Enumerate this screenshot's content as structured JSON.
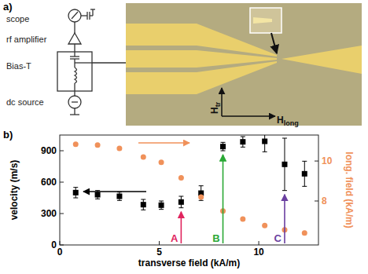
{
  "panel_a": {
    "label": "a)",
    "components": [
      "scope",
      "rf amplifier",
      "Bias-T",
      "dc source"
    ],
    "field_labels": [
      {
        "symbol": "H",
        "subscript": "tr"
      },
      {
        "symbol": "H",
        "subscript": "long"
      }
    ]
  },
  "panel_b": {
    "label": "b)"
  },
  "chart_data": {
    "type": "scatter",
    "xlabel": "transverse field (kA/m)",
    "ylabel": "velocity (m/s)",
    "y2label": "long. field (kA/m)",
    "xlim": [
      0,
      13
    ],
    "ylim": [
      0,
      1050
    ],
    "y2lim": [
      5.8,
      11.3
    ],
    "xticks": [
      0,
      5,
      10
    ],
    "yticks": [
      0,
      300,
      600,
      900
    ],
    "y2ticks": [
      8,
      10
    ],
    "x": [
      0.8,
      1.9,
      3.0,
      4.2,
      5.1,
      6.1,
      7.1,
      8.2,
      9.2,
      10.3,
      11.3,
      12.3
    ],
    "series": [
      {
        "color": "#000000",
        "marker": "square",
        "values": [
          500,
          480,
          465,
          385,
          380,
          410,
          495,
          940,
          985,
          990,
          770,
          680
        ],
        "errors": [
          50,
          40,
          40,
          50,
          40,
          55,
          70,
          40,
          50,
          100,
          250,
          120
        ]
      },
      {
        "color": "#f0915a",
        "marker": "circle",
        "axis": "y2",
        "values": [
          10.84,
          10.8,
          10.63,
          10.2,
          9.93,
          9.16,
          8.2,
          7.5,
          7.1,
          6.77,
          6.56,
          6.4
        ]
      }
    ],
    "annotations": [
      {
        "text": "A",
        "x": 6.1,
        "color": "#e0245e"
      },
      {
        "text": "B",
        "x": 8.2,
        "color": "#2aa835"
      },
      {
        "text": "C",
        "x": 11.3,
        "color": "#6a3fa0"
      }
    ]
  }
}
